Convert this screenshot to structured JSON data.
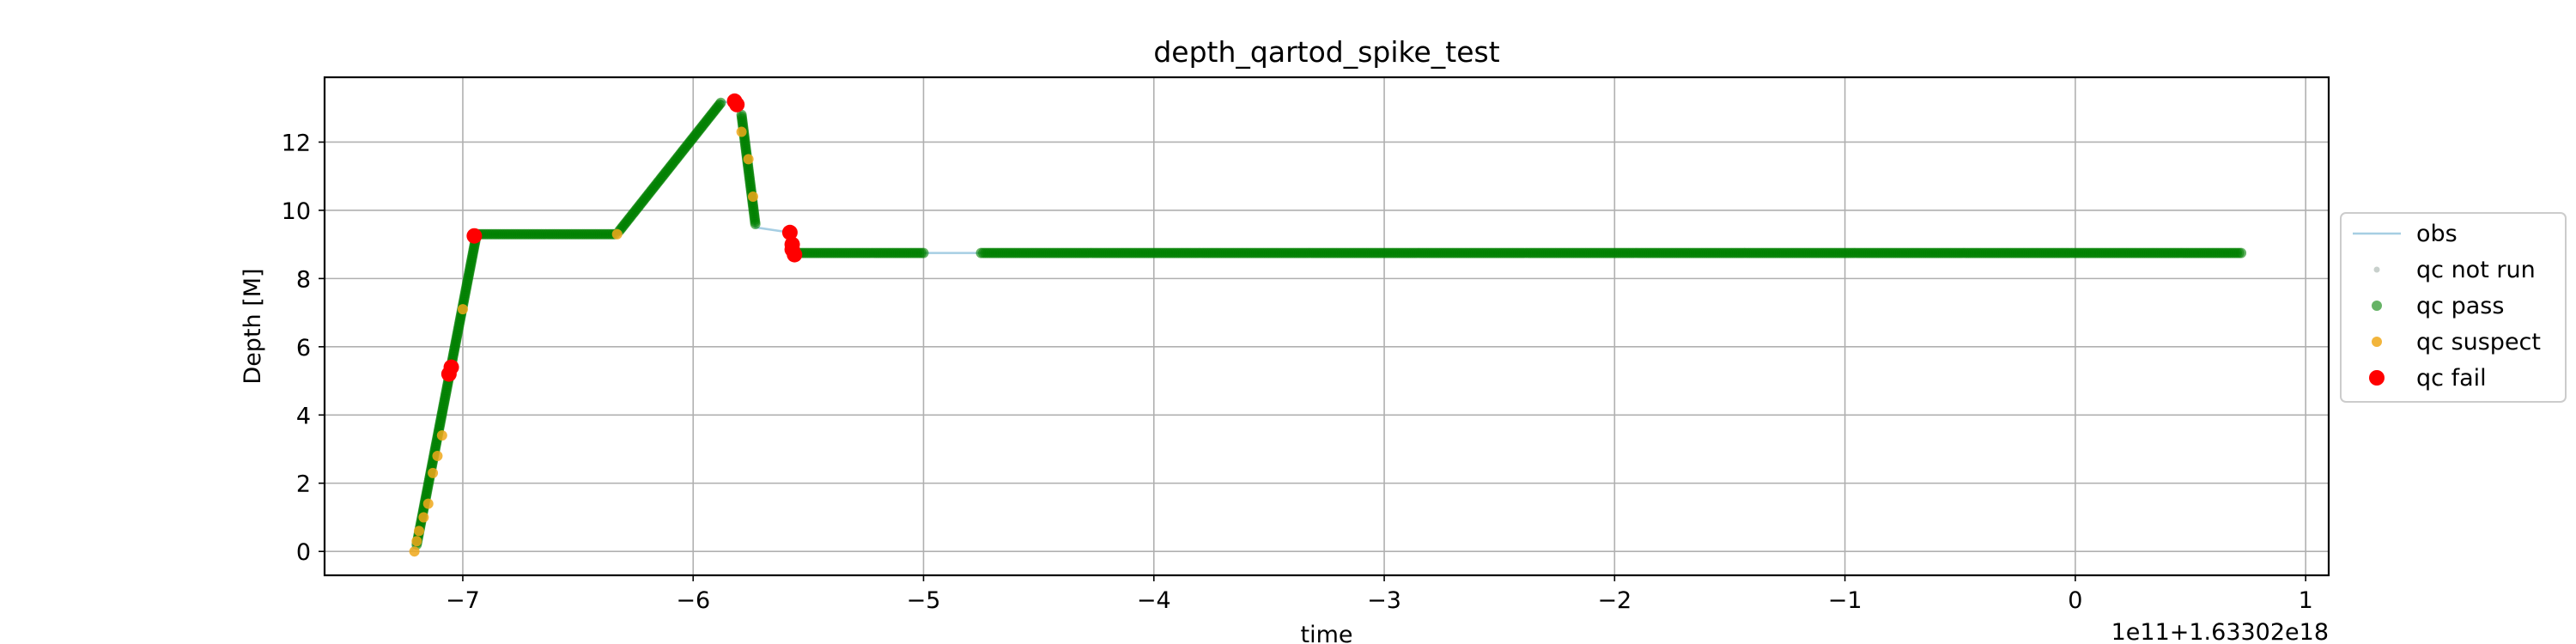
{
  "chart_data": {
    "type": "line",
    "title": "depth_qartod_spike_test",
    "xlabel": "time",
    "ylabel": "Depth [M]",
    "x_offset_label": "1e11+1.63302e18",
    "xlim": [
      -7.6,
      1.1
    ],
    "ylim": [
      -0.7,
      13.9
    ],
    "xticks": [
      -7,
      -6,
      -5,
      -4,
      -3,
      -2,
      -1,
      0,
      1
    ],
    "xtick_labels": [
      "−7",
      "−6",
      "−5",
      "−4",
      "−3",
      "−2",
      "−1",
      "0",
      "1"
    ],
    "yticks": [
      0,
      2,
      4,
      6,
      8,
      10,
      12
    ],
    "ytick_labels": [
      "0",
      "2",
      "4",
      "6",
      "8",
      "10",
      "12"
    ],
    "grid": true,
    "legend_position": "outside-right",
    "colors": {
      "obs": "#a6cee3",
      "qc_not_run": "#c8d0cc",
      "qc_pass": "#008000",
      "qc_suspect": "#f0a81a",
      "qc_fail": "#ff0000"
    },
    "series": [
      {
        "name": "obs",
        "kind": "line",
        "x": [
          -7.22,
          -6.95,
          -6.33,
          -5.88,
          -5.8,
          -5.73,
          -5.58,
          -5.56,
          -5.55,
          -5.0,
          -4.75,
          0.72
        ],
        "y": [
          0.0,
          9.3,
          9.3,
          13.2,
          13.1,
          9.5,
          9.35,
          8.9,
          8.75,
          8.75,
          8.75,
          8.75
        ]
      },
      {
        "name": "qc not run",
        "kind": "scatter",
        "x": [],
        "y": []
      },
      {
        "name": "qc pass",
        "kind": "scatter",
        "segments": [
          {
            "x": [
              -7.2,
              -6.94
            ],
            "y": [
              0.2,
              9.3
            ]
          },
          {
            "x": [
              -6.94,
              -6.34
            ],
            "y": [
              9.3,
              9.3
            ]
          },
          {
            "x": [
              -6.32,
              -5.88
            ],
            "y": [
              9.4,
              13.15
            ]
          },
          {
            "x": [
              -5.79,
              -5.73
            ],
            "y": [
              12.8,
              9.6
            ]
          },
          {
            "x": [
              -5.54,
              -5.0
            ],
            "y": [
              8.75,
              8.75
            ]
          },
          {
            "x": [
              -4.75,
              0.72
            ],
            "y": [
              8.75,
              8.75
            ]
          }
        ]
      },
      {
        "name": "qc suspect",
        "kind": "scatter",
        "x": [
          -7.21,
          -7.2,
          -7.19,
          -7.17,
          -7.15,
          -7.13,
          -7.11,
          -7.09,
          -7.0,
          -6.33,
          -5.79,
          -5.76,
          -5.74
        ],
        "y": [
          0.0,
          0.3,
          0.6,
          1.0,
          1.4,
          2.3,
          2.8,
          3.4,
          7.1,
          9.3,
          12.3,
          11.5,
          10.4
        ]
      },
      {
        "name": "qc fail",
        "kind": "scatter",
        "x": [
          -7.06,
          -7.05,
          -6.95,
          -5.82,
          -5.81,
          -5.58,
          -5.57,
          -5.57,
          -5.56
        ],
        "y": [
          5.2,
          5.4,
          9.25,
          13.2,
          13.1,
          9.35,
          9.0,
          8.85,
          8.7
        ]
      }
    ]
  }
}
